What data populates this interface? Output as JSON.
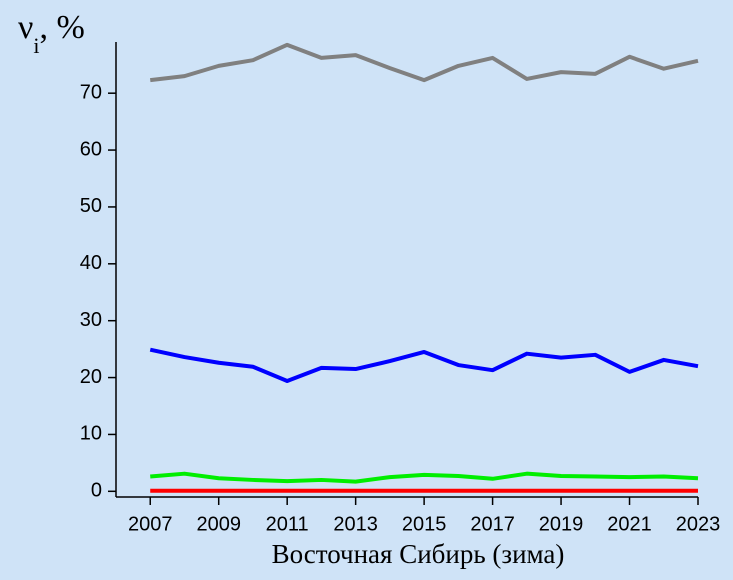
{
  "chart_data": {
    "type": "line",
    "y_label": [
      "ν",
      "i",
      ", %"
    ],
    "x_label": "Восточная Сибирь (зима)",
    "x": [
      2007,
      2008,
      2009,
      2010,
      2011,
      2012,
      2013,
      2014,
      2015,
      2016,
      2017,
      2018,
      2019,
      2020,
      2021,
      2022,
      2023
    ],
    "series": [
      {
        "color": "#808080",
        "values": [
          72.3,
          73.0,
          74.8,
          75.8,
          78.5,
          76.2,
          76.7,
          74.4,
          72.3,
          74.8,
          76.2,
          72.5,
          73.7,
          73.4,
          76.4,
          74.3,
          75.7
        ]
      },
      {
        "color": "#0000ff",
        "values": [
          24.9,
          23.6,
          22.6,
          21.9,
          19.4,
          21.7,
          21.5,
          22.9,
          24.5,
          22.2,
          21.3,
          24.2,
          23.5,
          24.0,
          21.0,
          23.1,
          22.0
        ]
      },
      {
        "color": "#00ee00",
        "values": [
          2.6,
          3.1,
          2.3,
          2.0,
          1.8,
          2.0,
          1.7,
          2.5,
          2.9,
          2.7,
          2.2,
          3.1,
          2.7,
          2.6,
          2.5,
          2.6,
          2.3
        ]
      },
      {
        "color": "#ff0000",
        "values": [
          0.1,
          0.1,
          0.1,
          0.1,
          0.1,
          0.1,
          0.1,
          0.1,
          0.1,
          0.1,
          0.1,
          0.1,
          0.1,
          0.1,
          0.1,
          0.1,
          0.1
        ]
      }
    ],
    "xlim": [
      2006,
      2023
    ],
    "xticks": [
      2007,
      2009,
      2011,
      2013,
      2015,
      2017,
      2019,
      2021,
      2023
    ],
    "ylim": [
      -1,
      79
    ],
    "yticks": [
      0,
      10,
      20,
      30,
      40,
      50,
      60,
      70
    ],
    "grid": false
  }
}
